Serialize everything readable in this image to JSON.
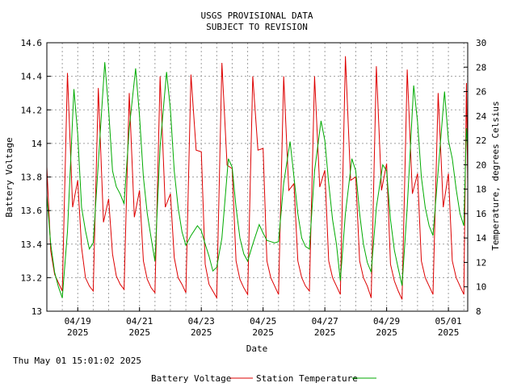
{
  "timestamp": "Thu May 01 15:01:02 2025",
  "chart_data": {
    "type": "line",
    "title": "USGS PROVISIONAL DATA",
    "subtitle": "SUBJECT TO REVISION",
    "xlabel": "Date",
    "ylabel": "Battery Voltage",
    "y2label": "Temperature, degrees Celsius",
    "ylim": [
      13,
      14.6
    ],
    "y2lim": [
      8,
      30
    ],
    "xlim": [
      "2025-04-18T00:00",
      "2025-05-01T15:00"
    ],
    "grid": true,
    "legend_position": "bottom-center",
    "x_ticks": [
      {
        "date": "2025-04-19",
        "month_day": "04/19",
        "year": "2025"
      },
      {
        "date": "2025-04-21",
        "month_day": "04/21",
        "year": "2025"
      },
      {
        "date": "2025-04-23",
        "month_day": "04/23",
        "year": "2025"
      },
      {
        "date": "2025-04-25",
        "month_day": "04/25",
        "year": "2025"
      },
      {
        "date": "2025-04-27",
        "month_day": "04/27",
        "year": "2025"
      },
      {
        "date": "2025-04-29",
        "month_day": "04/29",
        "year": "2025"
      },
      {
        "date": "2025-05-01",
        "month_day": "05/01",
        "year": "2025"
      }
    ],
    "y_ticks": [
      "13",
      "13.2",
      "13.4",
      "13.6",
      "13.8",
      "14",
      "14.2",
      "14.4",
      "14.6"
    ],
    "y2_ticks": [
      "8",
      "10",
      "12",
      "14",
      "16",
      "18",
      "20",
      "22",
      "24",
      "26",
      "28",
      "30"
    ],
    "series": [
      {
        "name": "Battery Voltage",
        "color": "#dd0000",
        "axis": "left",
        "points": [
          [
            "2025-04-18T00:00",
            13.86
          ],
          [
            "2025-04-18T03:00",
            13.36
          ],
          [
            "2025-04-18T06:00",
            13.22
          ],
          [
            "2025-04-18T09:00",
            13.17
          ],
          [
            "2025-04-18T12:00",
            13.12
          ],
          [
            "2025-04-18T16:00",
            14.42
          ],
          [
            "2025-04-18T20:00",
            13.62
          ],
          [
            "2025-04-19T00:00",
            13.78
          ],
          [
            "2025-04-19T03:00",
            13.38
          ],
          [
            "2025-04-19T06:00",
            13.2
          ],
          [
            "2025-04-19T09:00",
            13.15
          ],
          [
            "2025-04-19T12:00",
            13.12
          ],
          [
            "2025-04-19T16:00",
            14.33
          ],
          [
            "2025-04-19T20:00",
            13.53
          ],
          [
            "2025-04-20T00:00",
            13.67
          ],
          [
            "2025-04-20T03:00",
            13.34
          ],
          [
            "2025-04-20T06:00",
            13.21
          ],
          [
            "2025-04-20T09:00",
            13.16
          ],
          [
            "2025-04-20T12:00",
            13.13
          ],
          [
            "2025-04-20T16:00",
            14.3
          ],
          [
            "2025-04-20T20:00",
            13.56
          ],
          [
            "2025-04-21T00:00",
            13.72
          ],
          [
            "2025-04-21T03:00",
            13.3
          ],
          [
            "2025-04-21T06:00",
            13.19
          ],
          [
            "2025-04-21T09:00",
            13.14
          ],
          [
            "2025-04-21T12:00",
            13.11
          ],
          [
            "2025-04-21T16:00",
            14.4
          ],
          [
            "2025-04-21T20:00",
            13.62
          ],
          [
            "2025-04-22T00:00",
            13.7
          ],
          [
            "2025-04-22T03:00",
            13.32
          ],
          [
            "2025-04-22T06:00",
            13.2
          ],
          [
            "2025-04-22T09:00",
            13.16
          ],
          [
            "2025-04-22T12:00",
            13.11
          ],
          [
            "2025-04-22T16:00",
            14.41
          ],
          [
            "2025-04-22T20:00",
            13.96
          ],
          [
            "2025-04-23T00:00",
            13.95
          ],
          [
            "2025-04-23T03:00",
            13.28
          ],
          [
            "2025-04-23T06:00",
            13.16
          ],
          [
            "2025-04-23T09:00",
            13.12
          ],
          [
            "2025-04-23T12:00",
            13.08
          ],
          [
            "2025-04-23T16:00",
            14.48
          ],
          [
            "2025-04-23T20:00",
            13.87
          ],
          [
            "2025-04-24T00:00",
            13.85
          ],
          [
            "2025-04-24T03:00",
            13.3
          ],
          [
            "2025-04-24T06:00",
            13.19
          ],
          [
            "2025-04-24T09:00",
            13.14
          ],
          [
            "2025-04-24T12:00",
            13.1
          ],
          [
            "2025-04-24T16:00",
            14.4
          ],
          [
            "2025-04-24T20:00",
            13.96
          ],
          [
            "2025-04-25T00:00",
            13.97
          ],
          [
            "2025-04-25T03:00",
            13.3
          ],
          [
            "2025-04-25T06:00",
            13.2
          ],
          [
            "2025-04-25T09:00",
            13.15
          ],
          [
            "2025-04-25T12:00",
            13.1
          ],
          [
            "2025-04-25T16:00",
            14.4
          ],
          [
            "2025-04-25T20:00",
            13.72
          ],
          [
            "2025-04-26T00:00",
            13.76
          ],
          [
            "2025-04-26T03:00",
            13.3
          ],
          [
            "2025-04-26T06:00",
            13.2
          ],
          [
            "2025-04-26T09:00",
            13.15
          ],
          [
            "2025-04-26T12:00",
            13.12
          ],
          [
            "2025-04-26T16:00",
            14.4
          ],
          [
            "2025-04-26T20:00",
            13.74
          ],
          [
            "2025-04-27T00:00",
            13.84
          ],
          [
            "2025-04-27T03:00",
            13.3
          ],
          [
            "2025-04-27T06:00",
            13.2
          ],
          [
            "2025-04-27T09:00",
            13.15
          ],
          [
            "2025-04-27T12:00",
            13.1
          ],
          [
            "2025-04-27T16:00",
            14.52
          ],
          [
            "2025-04-27T20:00",
            13.78
          ],
          [
            "2025-04-28T00:00",
            13.8
          ],
          [
            "2025-04-28T03:00",
            13.3
          ],
          [
            "2025-04-28T06:00",
            13.2
          ],
          [
            "2025-04-28T09:00",
            13.15
          ],
          [
            "2025-04-28T12:00",
            13.08
          ],
          [
            "2025-04-28T16:00",
            14.46
          ],
          [
            "2025-04-28T20:00",
            13.72
          ],
          [
            "2025-04-29T00:00",
            13.88
          ],
          [
            "2025-04-29T03:00",
            13.28
          ],
          [
            "2025-04-29T06:00",
            13.18
          ],
          [
            "2025-04-29T09:00",
            13.12
          ],
          [
            "2025-04-29T12:00",
            13.07
          ],
          [
            "2025-04-29T16:00",
            14.44
          ],
          [
            "2025-04-29T20:00",
            13.7
          ],
          [
            "2025-04-30T00:00",
            13.82
          ],
          [
            "2025-04-30T03:00",
            13.3
          ],
          [
            "2025-04-30T06:00",
            13.2
          ],
          [
            "2025-04-30T09:00",
            13.15
          ],
          [
            "2025-04-30T12:00",
            13.1
          ],
          [
            "2025-04-30T16:00",
            14.3
          ],
          [
            "2025-04-30T20:00",
            13.62
          ],
          [
            "2025-05-01T00:00",
            13.82
          ],
          [
            "2025-05-01T03:00",
            13.3
          ],
          [
            "2025-05-01T06:00",
            13.2
          ],
          [
            "2025-05-01T09:00",
            13.15
          ],
          [
            "2025-05-01T12:00",
            13.1
          ],
          [
            "2025-05-01T14:00",
            14.36
          ],
          [
            "2025-05-01T15:00",
            13.76
          ]
        ]
      },
      {
        "name": "Station Temperature",
        "color": "#00aa00",
        "axis": "right",
        "points": [
          [
            "2025-04-18T00:00",
            17.5
          ],
          [
            "2025-04-18T03:00",
            13.5
          ],
          [
            "2025-04-18T06:00",
            11.2
          ],
          [
            "2025-04-18T09:00",
            10.0
          ],
          [
            "2025-04-18T12:00",
            9.1
          ],
          [
            "2025-04-18T16:00",
            14.5
          ],
          [
            "2025-04-18T21:00",
            26.2
          ],
          [
            "2025-04-19T00:00",
            22.5
          ],
          [
            "2025-04-19T03:00",
            16.5
          ],
          [
            "2025-04-19T06:00",
            14.6
          ],
          [
            "2025-04-19T09:00",
            13.1
          ],
          [
            "2025-04-19T12:00",
            13.6
          ],
          [
            "2025-04-19T17:00",
            21.8
          ],
          [
            "2025-04-19T21:00",
            28.4
          ],
          [
            "2025-04-20T00:00",
            24.5
          ],
          [
            "2025-04-20T03:00",
            19.5
          ],
          [
            "2025-04-20T06:00",
            18.2
          ],
          [
            "2025-04-20T09:00",
            17.6
          ],
          [
            "2025-04-20T12:00",
            16.8
          ],
          [
            "2025-04-20T16:00",
            23.0
          ],
          [
            "2025-04-20T21:00",
            27.9
          ],
          [
            "2025-04-21T00:00",
            24.0
          ],
          [
            "2025-04-21T03:00",
            19.0
          ],
          [
            "2025-04-21T06:00",
            16.0
          ],
          [
            "2025-04-21T09:00",
            14.0
          ],
          [
            "2025-04-21T12:00",
            12.1
          ],
          [
            "2025-04-21T16:00",
            21.5
          ],
          [
            "2025-04-21T21:00",
            27.6
          ],
          [
            "2025-04-22T00:00",
            24.5
          ],
          [
            "2025-04-22T03:00",
            19.5
          ],
          [
            "2025-04-22T06:00",
            16.5
          ],
          [
            "2025-04-22T09:00",
            14.5
          ],
          [
            "2025-04-22T12:00",
            13.4
          ],
          [
            "2025-04-22T16:00",
            14.2
          ],
          [
            "2025-04-22T21:00",
            15.0
          ],
          [
            "2025-04-23T00:00",
            14.6
          ],
          [
            "2025-04-23T03:00",
            13.5
          ],
          [
            "2025-04-23T06:00",
            12.5
          ],
          [
            "2025-04-23T09:00",
            11.3
          ],
          [
            "2025-04-23T12:00",
            11.6
          ],
          [
            "2025-04-23T16:00",
            14.0
          ],
          [
            "2025-04-23T21:00",
            20.5
          ],
          [
            "2025-04-24T00:00",
            19.8
          ],
          [
            "2025-04-24T03:00",
            16.5
          ],
          [
            "2025-04-24T06:00",
            14.0
          ],
          [
            "2025-04-24T09:00",
            12.7
          ],
          [
            "2025-04-24T12:00",
            12.1
          ],
          [
            "2025-04-24T16:00",
            13.5
          ],
          [
            "2025-04-24T21:00",
            15.1
          ],
          [
            "2025-04-25T00:00",
            14.4
          ],
          [
            "2025-04-25T03:00",
            13.8
          ],
          [
            "2025-04-25T06:00",
            13.7
          ],
          [
            "2025-04-25T09:00",
            13.6
          ],
          [
            "2025-04-25T12:00",
            13.7
          ],
          [
            "2025-04-25T16:00",
            18.5
          ],
          [
            "2025-04-25T21:00",
            21.9
          ],
          [
            "2025-04-26T00:00",
            19.0
          ],
          [
            "2025-04-26T03:00",
            16.0
          ],
          [
            "2025-04-26T06:00",
            14.0
          ],
          [
            "2025-04-26T09:00",
            13.3
          ],
          [
            "2025-04-26T12:00",
            13.1
          ],
          [
            "2025-04-26T16:00",
            19.5
          ],
          [
            "2025-04-26T21:00",
            23.6
          ],
          [
            "2025-04-27T00:00",
            22.0
          ],
          [
            "2025-04-27T03:00",
            18.5
          ],
          [
            "2025-04-27T06:00",
            15.5
          ],
          [
            "2025-04-27T09:00",
            13.5
          ],
          [
            "2025-04-27T12:00",
            10.5
          ],
          [
            "2025-04-27T16:00",
            16.0
          ],
          [
            "2025-04-27T21:00",
            20.5
          ],
          [
            "2025-04-28T00:00",
            19.5
          ],
          [
            "2025-04-28T03:00",
            16.0
          ],
          [
            "2025-04-28T06:00",
            13.5
          ],
          [
            "2025-04-28T09:00",
            12.0
          ],
          [
            "2025-04-28T12:00",
            11.2
          ],
          [
            "2025-04-28T16:00",
            16.5
          ],
          [
            "2025-04-28T21:00",
            20.0
          ],
          [
            "2025-04-29T00:00",
            19.5
          ],
          [
            "2025-04-29T03:00",
            15.5
          ],
          [
            "2025-04-29T06:00",
            13.0
          ],
          [
            "2025-04-29T09:00",
            11.5
          ],
          [
            "2025-04-29T12:00",
            10.1
          ],
          [
            "2025-04-29T16:00",
            16.5
          ],
          [
            "2025-04-29T21:00",
            26.5
          ],
          [
            "2025-04-30T00:00",
            23.5
          ],
          [
            "2025-04-30T03:00",
            19.0
          ],
          [
            "2025-04-30T06:00",
            16.5
          ],
          [
            "2025-04-30T09:00",
            15.0
          ],
          [
            "2025-04-30T12:00",
            14.2
          ],
          [
            "2025-04-30T16:00",
            19.5
          ],
          [
            "2025-04-30T21:00",
            26.0
          ],
          [
            "2025-05-01T00:00",
            22.0
          ],
          [
            "2025-05-01T03:00",
            20.5
          ],
          [
            "2025-05-01T06:00",
            18.0
          ],
          [
            "2025-05-01T09:00",
            16.0
          ],
          [
            "2025-05-01T12:00",
            15.0
          ],
          [
            "2025-05-01T14:00",
            23.0
          ],
          [
            "2025-05-01T15:00",
            21.5
          ]
        ]
      }
    ]
  }
}
